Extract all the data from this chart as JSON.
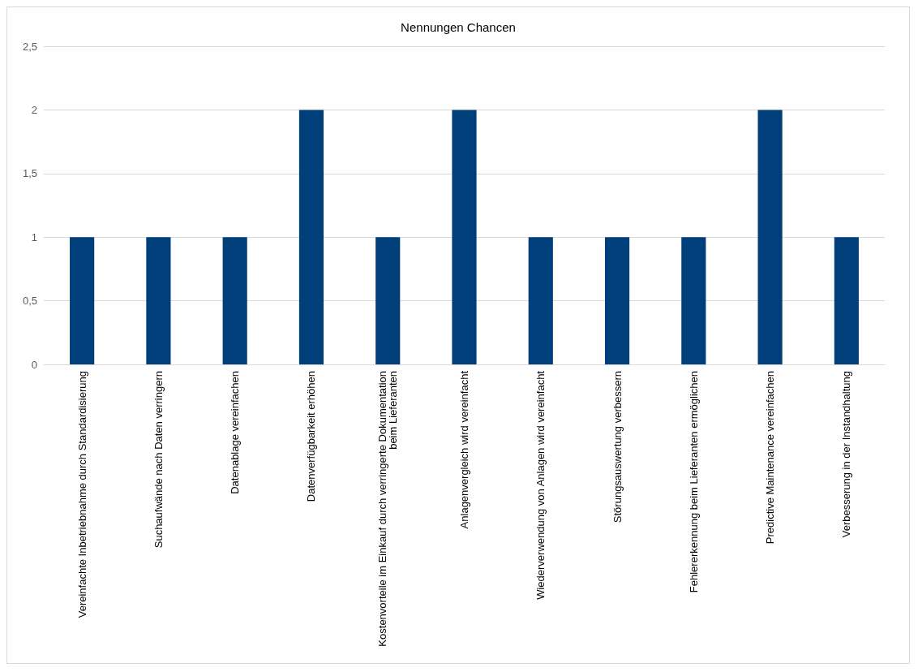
{
  "chart_data": {
    "type": "bar",
    "title": "Nennungen Chancen",
    "categories": [
      "Vereinfachte Inbetriebnahme durch Standardisierung",
      "Suchaufwände nach Daten verringern",
      "Datenablage vereinfachen",
      "Datenverfügbarkeit erhöhen",
      "Kostenvorteile im Einkauf durch verringerte Dokumentation beim Lieferanten",
      "Anlagenvergleich wird vereinfacht",
      "Wiederverwendung von Anlagen wird vereinfacht",
      "Störungsauswertung verbessern",
      "Fehlererkennung beim Lieferanten ermöglichen",
      "Predictive Maintenance vereinfachen",
      "Verbesserung in der Instandhaltung"
    ],
    "values": [
      1,
      1,
      1,
      2,
      1,
      2,
      1,
      1,
      1,
      2,
      1
    ],
    "color": "#003f7a",
    "ylim": [
      0,
      2.5
    ],
    "yticks": [
      {
        "value": 0,
        "label": "0"
      },
      {
        "value": 0.5,
        "label": "0,5"
      },
      {
        "value": 1,
        "label": "1"
      },
      {
        "value": 1.5,
        "label": "1,5"
      },
      {
        "value": 2,
        "label": "2"
      },
      {
        "value": 2.5,
        "label": "2,5"
      }
    ],
    "grid": "y"
  }
}
